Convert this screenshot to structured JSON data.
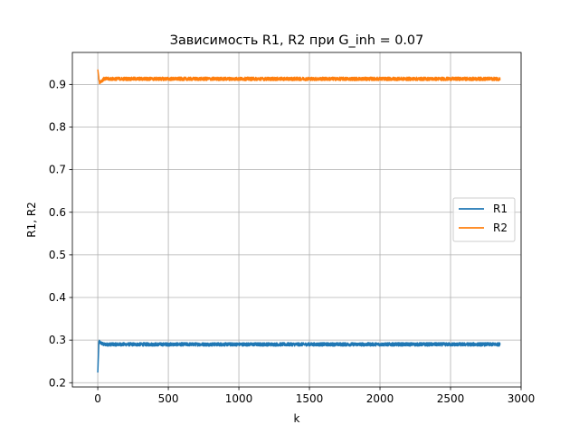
{
  "chart_data": {
    "type": "line",
    "title": "Зависимость R1, R2 при G_inh = 0.07",
    "xlabel": "k",
    "ylabel": "R1, R2",
    "xlim": [
      -180,
      3000
    ],
    "ylim": [
      0.19,
      0.975
    ],
    "xticks": [
      0,
      500,
      1000,
      1500,
      2000,
      2500,
      3000
    ],
    "yticks": [
      0.2,
      0.3,
      0.4,
      0.5,
      0.6,
      0.7,
      0.8,
      0.9
    ],
    "xtick_labels": [
      "0",
      "500",
      "1000",
      "1500",
      "2000",
      "2500",
      "3000"
    ],
    "ytick_labels": [
      "0.2",
      "0.3",
      "0.4",
      "0.5",
      "0.6",
      "0.7",
      "0.8",
      "0.9"
    ],
    "grid": true,
    "legend_position": "center-right",
    "x_range": [
      0,
      2850
    ],
    "series": [
      {
        "name": "R1",
        "color": "#1f77b4",
        "start_value": 0.224,
        "peak_value": 0.296,
        "steady_value": 0.29,
        "noise_amplitude": 0.004
      },
      {
        "name": "R2",
        "color": "#ff7f0e",
        "start_value": 0.935,
        "dip_value": 0.905,
        "steady_value": 0.913,
        "noise_amplitude": 0.004
      }
    ]
  }
}
